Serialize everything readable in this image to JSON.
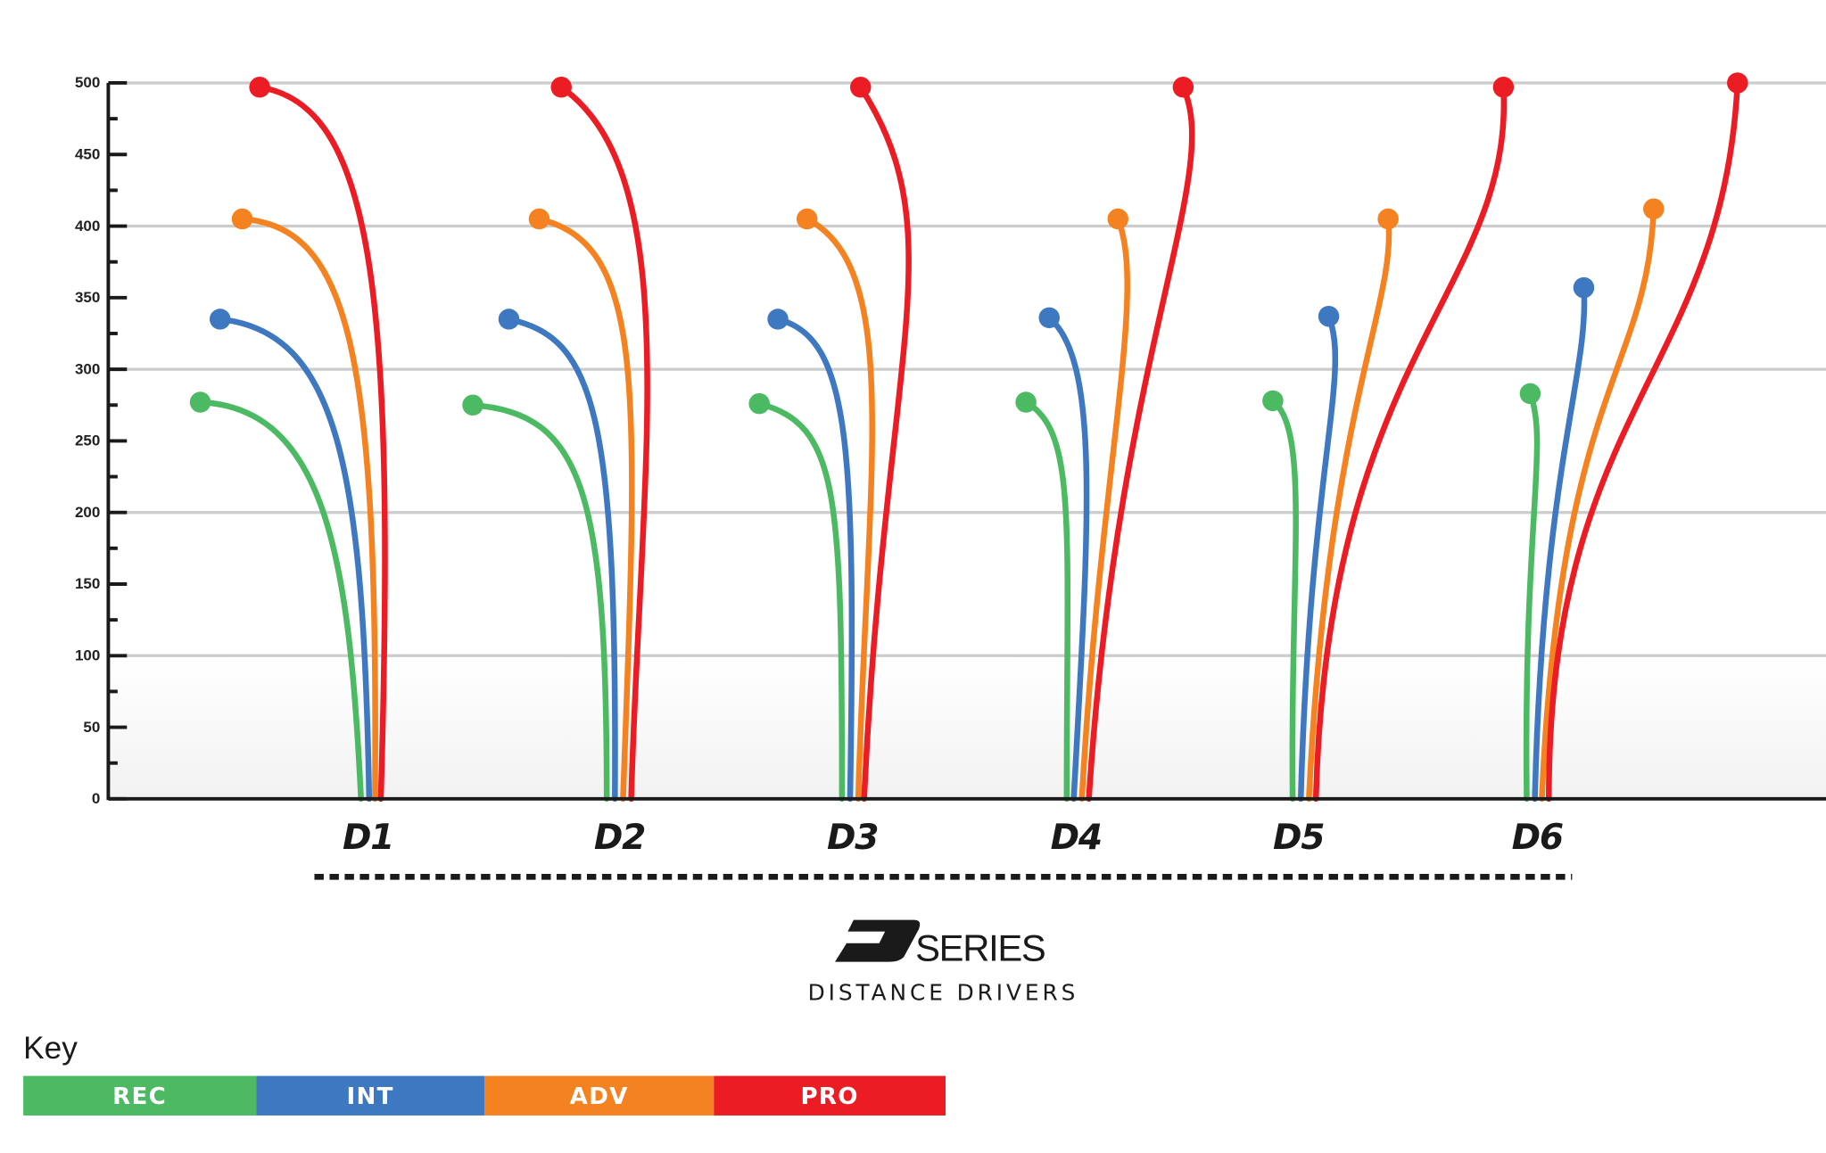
{
  "chart_data": {
    "type": "line",
    "title": "SERIES",
    "logo_letter": "D",
    "subtitle": "DISTANCE DRIVERS",
    "ylabel": "",
    "xlabel": "",
    "ylim": [
      0,
      500
    ],
    "yticks": [
      0,
      50,
      100,
      150,
      200,
      250,
      300,
      350,
      400,
      450,
      500
    ],
    "grid": true,
    "categories": [
      "D1",
      "D2",
      "D3",
      "D4",
      "D5",
      "D6"
    ],
    "highlight_category": "D2",
    "highlight_color": "#7bc043",
    "series": [
      {
        "name": "REC",
        "color": "#4cb963",
        "values": [
          277,
          275,
          276,
          277,
          278,
          283
        ]
      },
      {
        "name": "INT",
        "color": "#3d78c0",
        "values": [
          335,
          335,
          335,
          336,
          337,
          357
        ]
      },
      {
        "name": "ADV",
        "color": "#f58220",
        "values": [
          405,
          405,
          405,
          405,
          405,
          412
        ]
      },
      {
        "name": "PRO",
        "color": "#ec1c24",
        "values": [
          497,
          497,
          497,
          497,
          497,
          500
        ]
      }
    ],
    "legend": {
      "title": "Key",
      "placement": "bottom-left"
    }
  }
}
